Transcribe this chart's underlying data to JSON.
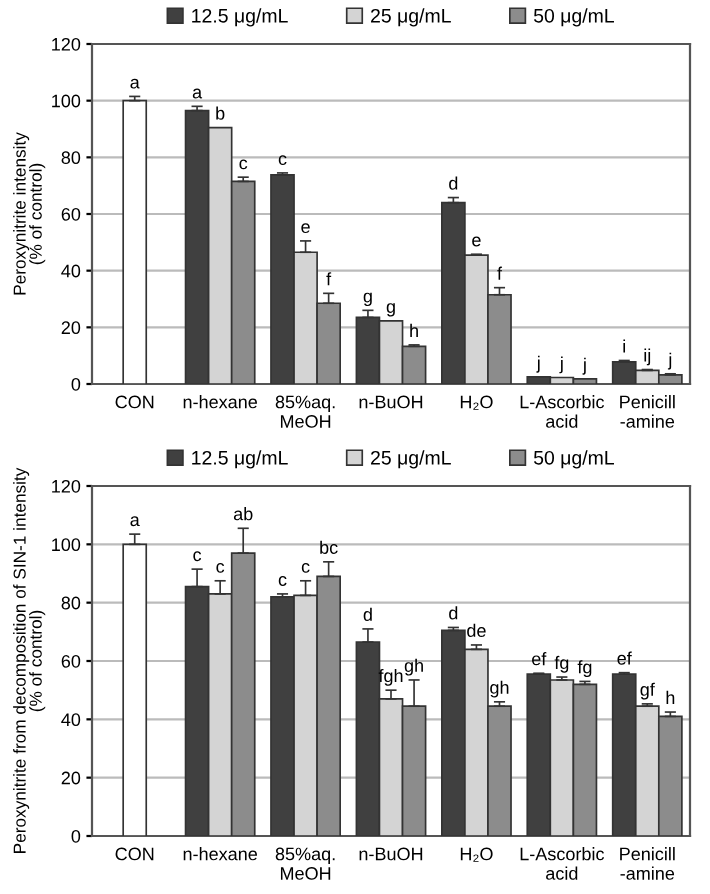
{
  "chart_data": [
    {
      "type": "bar",
      "ylabel": "Peroxynitrite intensity\n(% of control)",
      "categories": [
        "CON",
        "n-hexane",
        "85%aq.\nMeOH",
        "n-BuOH",
        "H₂O",
        "L-Ascorbic\nacid",
        "Penicill\n-amine"
      ],
      "ylim": [
        0,
        120
      ],
      "yticks": [
        0,
        20,
        40,
        60,
        80,
        100,
        120
      ],
      "grid": "y",
      "legend": "top",
      "series": [
        {
          "name": "12.5 μg/mL",
          "color": "#404040",
          "values": [
            null,
            96.5,
            73.8,
            23.5,
            64,
            2.5,
            7.8
          ],
          "errors": [
            null,
            1.5,
            0.7,
            2.5,
            1.8,
            null,
            0.5
          ],
          "value_labels": [
            null,
            "a",
            "c",
            "g",
            "d",
            "j",
            "i"
          ]
        },
        {
          "name": "25 μg/mL",
          "color": "#d4d4d4",
          "colors": [
            "#ffffff",
            "#d4d4d4",
            "#d4d4d4",
            "#d4d4d4",
            "#d4d4d4",
            "#d4d4d4",
            "#d4d4d4"
          ],
          "values": [
            100,
            90.5,
            46.5,
            22.3,
            45.5,
            2.3,
            4.8
          ],
          "errors": [
            1.5,
            null,
            4,
            null,
            0.3,
            null,
            0.3
          ],
          "value_labels": [
            "a",
            "b",
            "e",
            "g",
            "e",
            "j",
            "ij"
          ]
        },
        {
          "name": "50 μg/mL",
          "color": "#8c8c8c",
          "values": [
            null,
            71.5,
            28.5,
            13.3,
            31.5,
            1.8,
            3.2
          ],
          "errors": [
            null,
            1.5,
            3.5,
            0.5,
            2.5,
            null,
            0.4
          ],
          "value_labels": [
            null,
            "c",
            "f",
            "h",
            "f",
            "j",
            "j"
          ]
        }
      ]
    },
    {
      "type": "bar",
      "ylabel": "Peroxynitrite from decomposition of SIN-1 intensity\n(% of control)",
      "categories": [
        "CON",
        "n-hexane",
        "85%aq.\nMeOH",
        "n-BuOH",
        "H₂O",
        "L-Ascorbic\nacid",
        "Penicill\n-amine"
      ],
      "ylim": [
        0,
        120
      ],
      "yticks": [
        0,
        20,
        40,
        60,
        80,
        100,
        120
      ],
      "grid": "y",
      "legend": "top",
      "series": [
        {
          "name": "12.5 μg/mL",
          "color": "#404040",
          "values": [
            null,
            85.5,
            82,
            66.5,
            70.5,
            55.5,
            55.5
          ],
          "errors": [
            null,
            6,
            1,
            4.5,
            1,
            0.3,
            0.5
          ],
          "value_labels": [
            null,
            "c",
            "c",
            "d",
            "d",
            "ef",
            "ef"
          ]
        },
        {
          "name": "25 μg/mL",
          "color": "#d4d4d4",
          "colors": [
            "#ffffff",
            "#d4d4d4",
            "#d4d4d4",
            "#d4d4d4",
            "#d4d4d4",
            "#d4d4d4",
            "#d4d4d4"
          ],
          "values": [
            100,
            83,
            82.5,
            47,
            64,
            53.5,
            44.5
          ],
          "errors": [
            3.5,
            4.5,
            5,
            3,
            1.5,
            1,
            0.8
          ],
          "value_labels": [
            "a",
            "c",
            "c",
            "fgh",
            "de",
            "fg",
            "gf"
          ]
        },
        {
          "name": "50 μg/mL",
          "color": "#8c8c8c",
          "values": [
            null,
            97,
            89,
            44.5,
            44.5,
            52,
            41
          ],
          "errors": [
            null,
            8.5,
            5,
            9,
            1.5,
            1,
            1.5
          ],
          "value_labels": [
            null,
            "ab",
            "bc",
            "gh",
            "gh",
            "fg",
            "h"
          ]
        }
      ]
    }
  ]
}
